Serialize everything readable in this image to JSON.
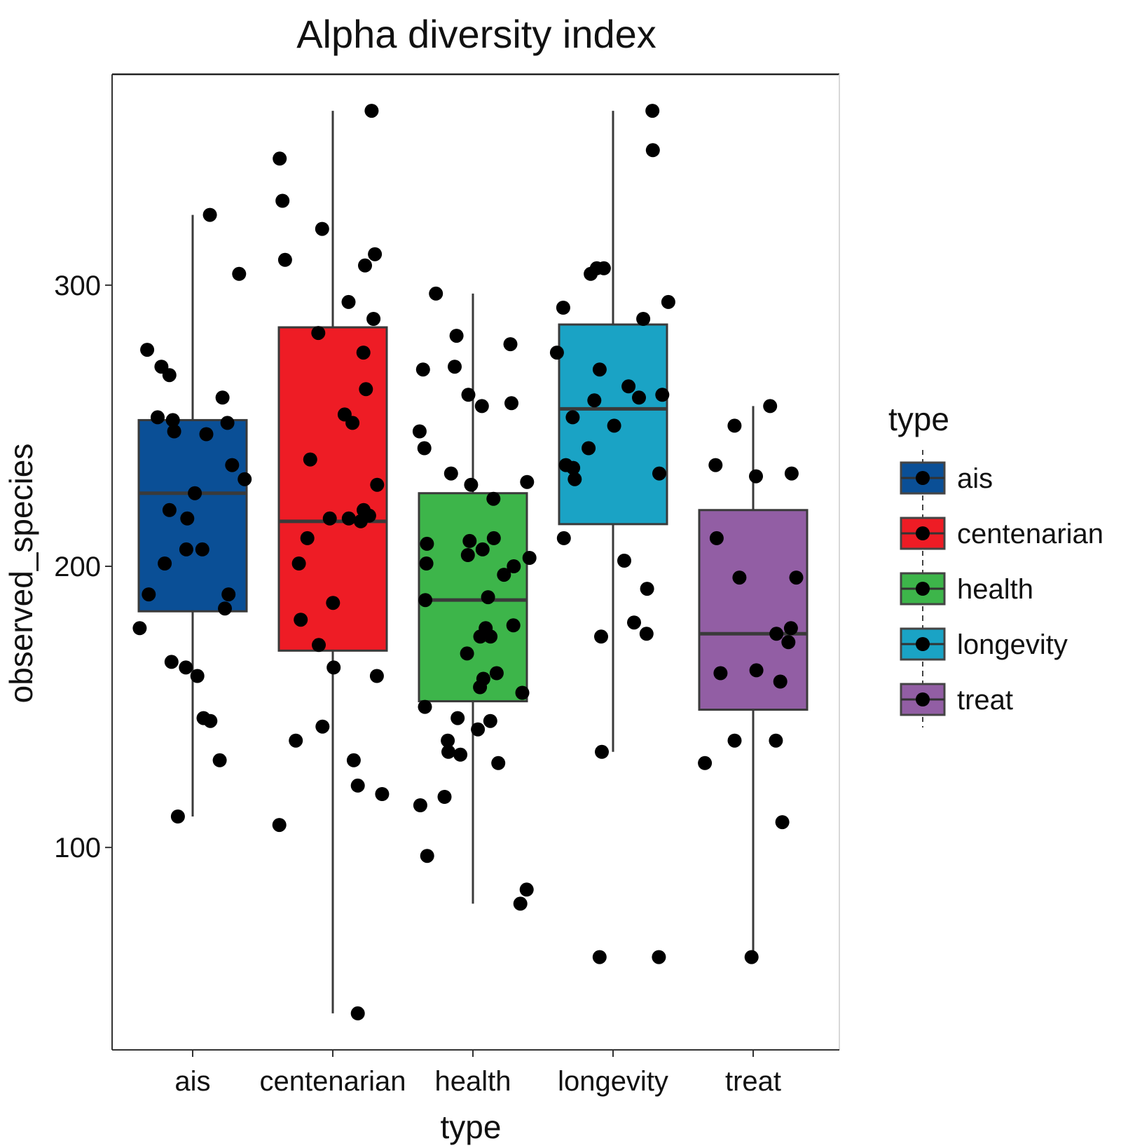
{
  "chart_data": {
    "type": "box",
    "title": "Alpha diversity index",
    "xlabel": "type",
    "ylabel": "observed_species",
    "ylim": [
      28,
      375
    ],
    "yticks": [
      100,
      200,
      300
    ],
    "categories": [
      "ais",
      "centenarian",
      "health",
      "longevity",
      "treat"
    ],
    "legend": {
      "title": "type",
      "placement": "right",
      "items": [
        "ais",
        "centenarian",
        "health",
        "longevity",
        "treat"
      ]
    },
    "colors": {
      "ais": "#0a4f96",
      "centenarian": "#ee1c25",
      "health": "#3db54a",
      "longevity": "#1aa3c5",
      "treat": "#925ea4",
      "point": "#000000",
      "box_line": "#3a3a3a",
      "median": "#3a3a3a"
    },
    "series": [
      {
        "name": "ais",
        "box": {
          "whisker_low": 111,
          "q1": 184,
          "median": 226,
          "q3": 252,
          "whisker_high": 325
        },
        "points": [
          325,
          304,
          268,
          277,
          271,
          260,
          253,
          252,
          251,
          248,
          247,
          236,
          231,
          226,
          220,
          217,
          206,
          206,
          201,
          190,
          190,
          185,
          178,
          166,
          164,
          161,
          146,
          145,
          131,
          111
        ]
      },
      {
        "name": "centenarian",
        "box": {
          "whisker_low": 41,
          "q1": 170,
          "median": 216,
          "q3": 285,
          "whisker_high": 362
        },
        "points": [
          362,
          345,
          330,
          320,
          311,
          309,
          307,
          294,
          288,
          283,
          276,
          263,
          254,
          251,
          238,
          229,
          220,
          218,
          217,
          217,
          216,
          210,
          201,
          187,
          181,
          172,
          164,
          161,
          143,
          138,
          131,
          122,
          119,
          108,
          41
        ]
      },
      {
        "name": "health",
        "box": {
          "whisker_low": 80,
          "q1": 152,
          "median": 188,
          "q3": 226,
          "whisker_high": 297
        },
        "points": [
          297,
          282,
          279,
          271,
          270,
          261,
          258,
          257,
          248,
          242,
          233,
          230,
          229,
          224,
          210,
          209,
          208,
          206,
          204,
          203,
          201,
          200,
          197,
          189,
          188,
          179,
          178,
          175,
          175,
          169,
          162,
          160,
          157,
          155,
          150,
          146,
          145,
          142,
          138,
          134,
          133,
          130,
          118,
          115,
          97,
          85,
          80
        ]
      },
      {
        "name": "longevity",
        "box": {
          "whisker_low": 134,
          "q1": 215,
          "median": 256,
          "q3": 286,
          "whisker_high": 362
        },
        "points": [
          362,
          348,
          306,
          306,
          304,
          294,
          292,
          288,
          276,
          270,
          264,
          261,
          260,
          259,
          253,
          250,
          242,
          236,
          235,
          233,
          231,
          210,
          202,
          192,
          180,
          176,
          175,
          134,
          61,
          61
        ]
      },
      {
        "name": "treat",
        "box": {
          "whisker_low": 61,
          "q1": 149,
          "median": 176,
          "q3": 220,
          "whisker_high": 257
        },
        "points": [
          257,
          250,
          236,
          233,
          232,
          210,
          196,
          196,
          178,
          176,
          173,
          163,
          162,
          159,
          138,
          138,
          130,
          109,
          61
        ]
      }
    ]
  }
}
